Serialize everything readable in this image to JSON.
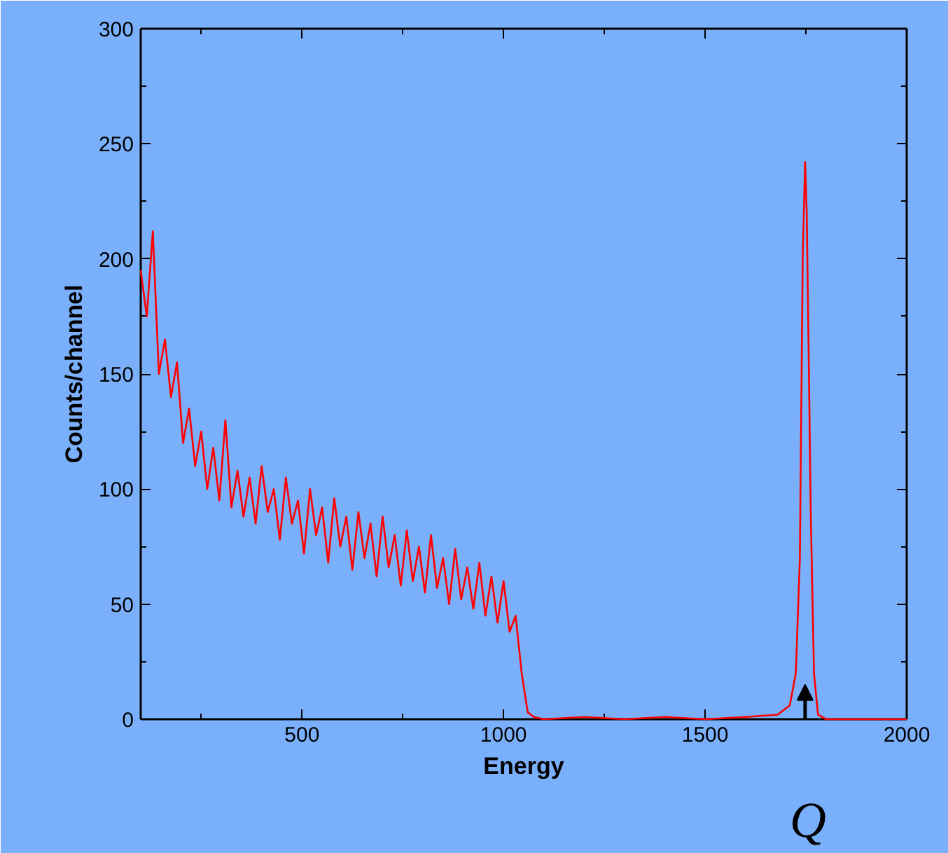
{
  "chart_data": {
    "type": "line",
    "xlabel": "Energy",
    "ylabel": "Counts/channel",
    "x": [
      100,
      115,
      130,
      145,
      160,
      175,
      190,
      205,
      220,
      235,
      250,
      265,
      280,
      295,
      310,
      325,
      340,
      355,
      370,
      385,
      400,
      415,
      430,
      445,
      460,
      475,
      490,
      505,
      520,
      535,
      550,
      565,
      580,
      595,
      610,
      625,
      640,
      655,
      670,
      685,
      700,
      715,
      730,
      745,
      760,
      775,
      790,
      805,
      820,
      835,
      850,
      865,
      880,
      895,
      910,
      925,
      940,
      955,
      970,
      985,
      1000,
      1015,
      1030,
      1045,
      1060,
      1075,
      1100,
      1200,
      1300,
      1400,
      1500,
      1600,
      1680,
      1710,
      1725,
      1735,
      1742,
      1748,
      1752,
      1756,
      1762,
      1770,
      1780,
      1800,
      1900,
      2000
    ],
    "series": [
      {
        "color": "#ff0000",
        "values": [
          195,
          175,
          212,
          150,
          165,
          140,
          155,
          120,
          135,
          110,
          125,
          100,
          118,
          95,
          130,
          92,
          108,
          88,
          105,
          85,
          110,
          90,
          100,
          78,
          105,
          85,
          95,
          72,
          100,
          80,
          92,
          68,
          96,
          75,
          88,
          65,
          90,
          70,
          85,
          62,
          88,
          66,
          80,
          58,
          82,
          60,
          75,
          55,
          80,
          57,
          70,
          50,
          74,
          52,
          66,
          48,
          68,
          45,
          62,
          42,
          60,
          38,
          45,
          20,
          3,
          1,
          0,
          1,
          0,
          1,
          0,
          1,
          2,
          6,
          20,
          70,
          200,
          242,
          220,
          170,
          90,
          20,
          2,
          0,
          0,
          0
        ]
      }
    ],
    "xlim": [
      100,
      2000
    ],
    "ylim": [
      0,
      300
    ],
    "xticks": [
      500,
      1000,
      1500,
      2000
    ],
    "yticks": [
      0,
      50,
      100,
      150,
      200,
      250,
      300
    ],
    "grid": false,
    "marker": "none",
    "line_style": "solid",
    "annotations": [
      "Q"
    ]
  }
}
